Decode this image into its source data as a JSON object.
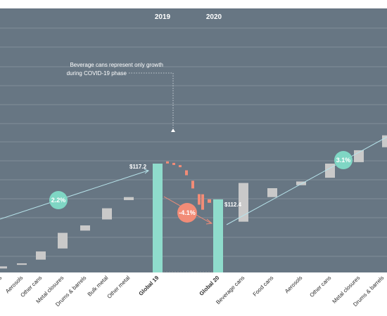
{
  "chart_data": {
    "type": "bar",
    "subtype": "waterfall",
    "title": "",
    "xlabel": "",
    "ylabel": "",
    "years": [
      "2019",
      "2020"
    ],
    "annotation": [
      "Beverage cans represent only growth",
      "during COVID-19 phase"
    ],
    "totals": [
      {
        "category": "Global 19",
        "value": 117.2,
        "label": "$117.2"
      },
      {
        "category": "Global 20",
        "value": 112.4,
        "label": "$112.4"
      }
    ],
    "steps_left": [
      {
        "category": "Aerosols",
        "from": 103.6,
        "to": 103.8
      },
      {
        "category": "Other cans",
        "from": 104.3,
        "to": 105.4
      },
      {
        "category": "Metal closures",
        "from": 105.8,
        "to": 107.9
      },
      {
        "category": "Drums & barrels",
        "from": 108.2,
        "to": 108.9
      },
      {
        "category": "Bulk metal",
        "from": 109.7,
        "to": 111.2
      },
      {
        "category": "Other metal",
        "from": 112.3,
        "to": 112.7
      }
    ],
    "partial_left_category": "...s",
    "decline": {
      "from": 117.2,
      "to": 112.4,
      "segments": [
        117.5,
        117.3,
        117.0,
        116.3,
        114.9,
        113.1
      ]
    },
    "steps_right": [
      {
        "category": "Beverage cans",
        "from": 109.4,
        "to": 114.6
      },
      {
        "category": "Food cans",
        "from": 112.7,
        "to": 113.9
      },
      {
        "category": "Aerosols",
        "from": 114.3,
        "to": 114.8
      },
      {
        "category": "Other cans",
        "from": 115.3,
        "to": 117.2
      },
      {
        "category": "Metal closures",
        "from": 117.4,
        "to": 119.0
      },
      {
        "category": "Drums & barrels",
        "from": 119.4,
        "to": 121.0
      }
    ],
    "cagr": [
      {
        "label": "2.2%",
        "color": "#7fd6c4"
      },
      {
        "label": "-4.1%",
        "color": "#f28c77"
      },
      {
        "label": "3.1%",
        "color": "#7fd6c4"
      }
    ],
    "ylim": [
      95,
      128
    ],
    "grid": true,
    "legend": "none"
  },
  "colors": {
    "panel": "#677683",
    "grid": "#8a97a1",
    "total_bar": "#8fdccc",
    "step_bar": "#c9c9c9",
    "decline_bar": "#f28c77",
    "trend_line": "#b6e3ea"
  }
}
